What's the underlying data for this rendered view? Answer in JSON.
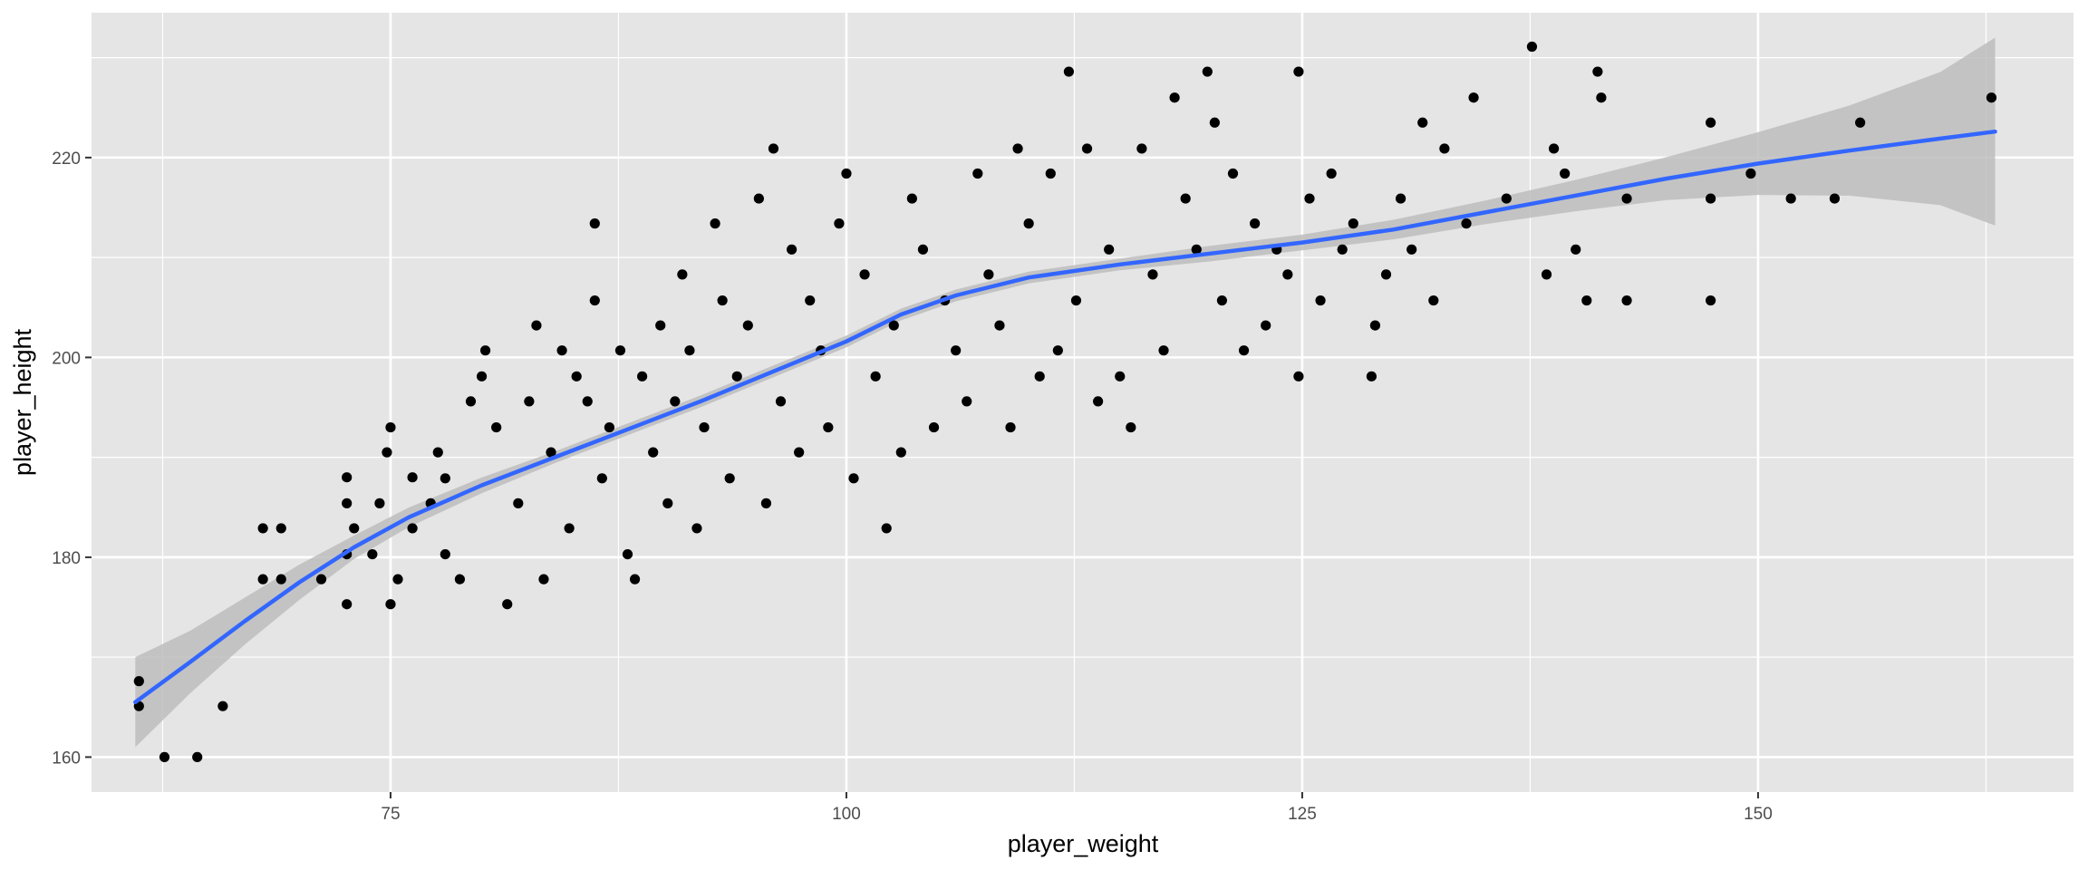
{
  "chart_data": {
    "type": "scatter",
    "title": "",
    "xlabel": "player_weight",
    "ylabel": "player_height",
    "xlim": [
      58.6,
      167.3
    ],
    "ylim": [
      156.5,
      234.5
    ],
    "x_ticks": [
      {
        "value": 75,
        "label": "75"
      },
      {
        "value": 100,
        "label": "100"
      },
      {
        "value": 125,
        "label": "125"
      },
      {
        "value": 150,
        "label": "150"
      }
    ],
    "y_ticks": [
      {
        "value": 160,
        "label": "160"
      },
      {
        "value": 180,
        "label": "180"
      },
      {
        "value": 200,
        "label": "200"
      },
      {
        "value": 220,
        "label": "220"
      }
    ],
    "grid": true,
    "legend": "none",
    "colors": {
      "panel": "#e5e5e5",
      "grid": "#ffffff",
      "points": "#000000",
      "smooth_line": "#3366ff",
      "ribbon": "#bdbdbd"
    },
    "points": [
      [
        61.2,
        165.1
      ],
      [
        61.2,
        167.6
      ],
      [
        62.6,
        160.0
      ],
      [
        64.4,
        160.0
      ],
      [
        65.8,
        165.1
      ],
      [
        68.0,
        177.8
      ],
      [
        68.0,
        182.9
      ],
      [
        69.0,
        177.8
      ],
      [
        69.0,
        182.9
      ],
      [
        71.2,
        177.8
      ],
      [
        72.6,
        175.3
      ],
      [
        72.6,
        180.3
      ],
      [
        72.6,
        185.4
      ],
      [
        72.6,
        188.0
      ],
      [
        73.0,
        182.9
      ],
      [
        74.0,
        180.3
      ],
      [
        74.4,
        185.4
      ],
      [
        74.8,
        190.5
      ],
      [
        75.0,
        193.0
      ],
      [
        75.0,
        175.3
      ],
      [
        75.4,
        177.8
      ],
      [
        76.2,
        182.9
      ],
      [
        76.2,
        188.0
      ],
      [
        77.2,
        185.4
      ],
      [
        77.6,
        190.5
      ],
      [
        78.0,
        180.3
      ],
      [
        78.0,
        187.9
      ],
      [
        78.8,
        177.8
      ],
      [
        79.4,
        195.6
      ],
      [
        80.0,
        198.1
      ],
      [
        80.2,
        200.7
      ],
      [
        80.8,
        193.0
      ],
      [
        81.4,
        175.3
      ],
      [
        82.0,
        185.4
      ],
      [
        82.6,
        195.6
      ],
      [
        83.0,
        203.2
      ],
      [
        83.4,
        177.8
      ],
      [
        83.8,
        190.5
      ],
      [
        84.4,
        200.7
      ],
      [
        84.8,
        182.9
      ],
      [
        85.2,
        198.1
      ],
      [
        85.8,
        195.6
      ],
      [
        86.2,
        205.7
      ],
      [
        86.2,
        213.4
      ],
      [
        86.6,
        187.9
      ],
      [
        87.0,
        193.0
      ],
      [
        87.6,
        200.7
      ],
      [
        88.0,
        180.3
      ],
      [
        88.4,
        177.8
      ],
      [
        88.8,
        198.1
      ],
      [
        89.4,
        190.5
      ],
      [
        89.8,
        203.2
      ],
      [
        90.2,
        185.4
      ],
      [
        90.6,
        195.6
      ],
      [
        91.0,
        208.3
      ],
      [
        91.4,
        200.7
      ],
      [
        91.8,
        182.9
      ],
      [
        92.2,
        193.0
      ],
      [
        92.8,
        213.4
      ],
      [
        93.2,
        205.7
      ],
      [
        93.6,
        187.9
      ],
      [
        94.0,
        198.1
      ],
      [
        94.6,
        203.2
      ],
      [
        95.2,
        215.9
      ],
      [
        95.6,
        185.4
      ],
      [
        96.0,
        220.9
      ],
      [
        96.4,
        195.6
      ],
      [
        97.0,
        210.8
      ],
      [
        97.4,
        190.5
      ],
      [
        98.0,
        205.7
      ],
      [
        98.6,
        200.7
      ],
      [
        99.0,
        193.0
      ],
      [
        99.6,
        213.4
      ],
      [
        100.0,
        218.4
      ],
      [
        100.4,
        187.9
      ],
      [
        101.0,
        208.3
      ],
      [
        101.6,
        198.1
      ],
      [
        102.2,
        182.9
      ],
      [
        102.6,
        203.2
      ],
      [
        103.0,
        190.5
      ],
      [
        103.6,
        215.9
      ],
      [
        104.2,
        210.8
      ],
      [
        104.8,
        193.0
      ],
      [
        105.4,
        205.7
      ],
      [
        106.0,
        200.7
      ],
      [
        106.6,
        195.6
      ],
      [
        107.2,
        218.4
      ],
      [
        107.8,
        208.3
      ],
      [
        108.4,
        203.2
      ],
      [
        109.0,
        193.0
      ],
      [
        109.4,
        220.9
      ],
      [
        110.0,
        213.4
      ],
      [
        110.6,
        198.1
      ],
      [
        111.2,
        218.4
      ],
      [
        111.6,
        200.7
      ],
      [
        112.2,
        228.6
      ],
      [
        112.6,
        205.7
      ],
      [
        113.2,
        220.9
      ],
      [
        113.8,
        195.6
      ],
      [
        114.4,
        210.8
      ],
      [
        115.0,
        198.1
      ],
      [
        115.6,
        193.0
      ],
      [
        116.2,
        220.9
      ],
      [
        116.8,
        208.3
      ],
      [
        117.4,
        200.7
      ],
      [
        118.0,
        226.0
      ],
      [
        118.6,
        215.9
      ],
      [
        119.2,
        210.8
      ],
      [
        119.8,
        228.6
      ],
      [
        120.2,
        223.5
      ],
      [
        120.6,
        205.7
      ],
      [
        121.2,
        218.4
      ],
      [
        121.8,
        200.7
      ],
      [
        122.4,
        213.4
      ],
      [
        123.0,
        203.2
      ],
      [
        123.6,
        210.8
      ],
      [
        124.2,
        208.3
      ],
      [
        124.8,
        228.6
      ],
      [
        124.8,
        198.1
      ],
      [
        125.4,
        215.9
      ],
      [
        126.0,
        205.7
      ],
      [
        126.6,
        218.4
      ],
      [
        127.2,
        210.8
      ],
      [
        127.8,
        213.4
      ],
      [
        128.8,
        198.1
      ],
      [
        129.0,
        203.2
      ],
      [
        129.6,
        208.3
      ],
      [
        130.4,
        215.9
      ],
      [
        131.0,
        210.8
      ],
      [
        131.6,
        223.5
      ],
      [
        132.2,
        205.7
      ],
      [
        132.8,
        220.9
      ],
      [
        134.0,
        213.4
      ],
      [
        134.4,
        226.0
      ],
      [
        136.2,
        215.9
      ],
      [
        137.6,
        231.1
      ],
      [
        138.4,
        208.3
      ],
      [
        138.8,
        220.9
      ],
      [
        139.4,
        218.4
      ],
      [
        140.0,
        210.8
      ],
      [
        140.6,
        205.7
      ],
      [
        141.2,
        228.6
      ],
      [
        141.4,
        226.0
      ],
      [
        142.8,
        215.9
      ],
      [
        142.8,
        205.7
      ],
      [
        147.4,
        223.5
      ],
      [
        147.4,
        215.9
      ],
      [
        147.4,
        205.7
      ],
      [
        149.6,
        218.4
      ],
      [
        151.8,
        215.9
      ],
      [
        154.2,
        215.9
      ],
      [
        155.6,
        223.5
      ],
      [
        162.8,
        226.0
      ]
    ],
    "smooth_fit": {
      "x": [
        61,
        64,
        67,
        70,
        73,
        76,
        80,
        84,
        88,
        92,
        96,
        100,
        103,
        106,
        110,
        115,
        120,
        125,
        130,
        135,
        140,
        145,
        150,
        155,
        160,
        163
      ],
      "y": [
        165.5,
        169.5,
        173.6,
        177.5,
        181.0,
        184.0,
        187.2,
        190.0,
        192.8,
        195.6,
        198.6,
        201.6,
        204.3,
        206.2,
        208.0,
        209.3,
        210.4,
        211.5,
        212.8,
        214.5,
        216.2,
        217.9,
        219.4,
        220.7,
        221.9,
        222.6
      ],
      "se": [
        2.3,
        1.6,
        1.2,
        0.9,
        0.6,
        0.5,
        0.4,
        0.3,
        0.3,
        0.3,
        0.3,
        0.3,
        0.3,
        0.3,
        0.3,
        0.3,
        0.4,
        0.4,
        0.5,
        0.6,
        0.8,
        1.1,
        1.6,
        2.3,
        3.4,
        4.8
      ]
    }
  }
}
